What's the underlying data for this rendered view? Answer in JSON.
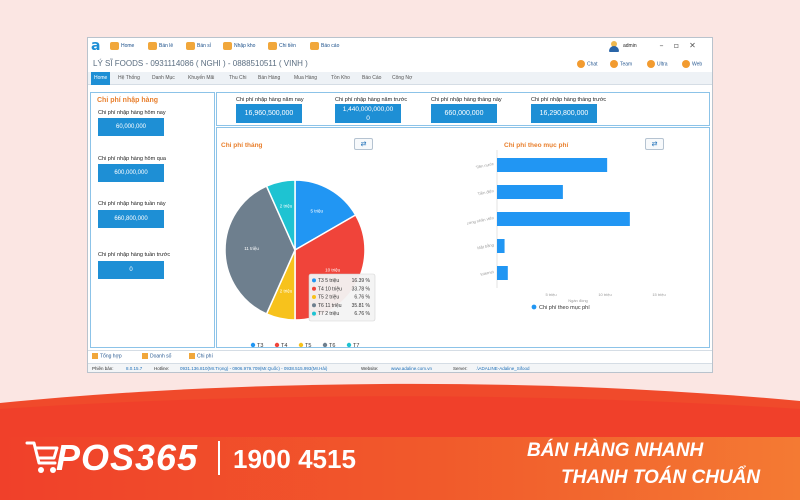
{
  "toolbar": {
    "items": [
      {
        "label": "Home"
      },
      {
        "label": "Bán lẻ"
      },
      {
        "label": "Bán sỉ"
      },
      {
        "label": "Nhập kho"
      },
      {
        "label": "Chi tiền"
      },
      {
        "label": "Báo cáo"
      }
    ],
    "user": "admin"
  },
  "store": {
    "title": "LÝ SĨ FOODS - 0931114086 ( NGHI ) - 0888510511 ( VINH )",
    "links": [
      "Chat",
      "Team",
      "Ultra",
      "Web"
    ]
  },
  "nav": [
    "Home",
    "Hệ Thống",
    "Danh Mục",
    "Khuyến Mãi",
    "Thu Chi",
    "Bán Hàng",
    "Mua Hàng",
    "Tồn Kho",
    "Báo Cáo",
    "Công Nợ"
  ],
  "left_panel": {
    "title": "Chi phí nhập hàng",
    "kpis": [
      {
        "label": "Chi phí nhập hàng hôm nay",
        "value": "60,000,000"
      },
      {
        "label": "Chi phí nhập hàng hôm qua",
        "value": "600,000,000"
      },
      {
        "label": "Chi phí nhập hàng tuần này",
        "value": "660,800,000"
      },
      {
        "label": "Chi phí nhập hàng tuần trước",
        "value": "0"
      }
    ]
  },
  "top_kpis": [
    {
      "label": "Chi phí nhập hàng năm nay",
      "line1": "16,960,500,000",
      "line2": ""
    },
    {
      "label": "Chi phí nhập hàng năm trước",
      "line1": "1,440,000,000,00",
      "line2": "0"
    },
    {
      "label": "Chi phí nhập hàng tháng này",
      "line1": "660,000,000",
      "line2": ""
    },
    {
      "label": "Chi phí nhập hàng tháng trước",
      "line1": "16,290,800,000",
      "line2": ""
    }
  ],
  "pie": {
    "title": "Chi phí tháng",
    "refresh_icon": "refresh-icon",
    "slice_labels": [
      "5 triệu",
      "10 triệu",
      "2 triệu",
      "11 triệu",
      "2 triệu"
    ],
    "legend": [
      "T3",
      "T4",
      "T5",
      "T6",
      "T7"
    ],
    "colors": [
      "#2196f3",
      "#f0443a",
      "#f7c21c",
      "#6e7f8e",
      "#1ec3d2"
    ],
    "tooltip": [
      {
        "name": "T3",
        "amount": "5 triệu",
        "pct": "16.39 %"
      },
      {
        "name": "T4",
        "amount": "10 triệu",
        "pct": "33.78 %"
      },
      {
        "name": "T5",
        "amount": "2 triệu",
        "pct": "6.76 %"
      },
      {
        "name": "T6",
        "amount": "11 triệu",
        "pct": "35.81 %"
      },
      {
        "name": "T7",
        "amount": "2 triệu",
        "pct": "6.76 %"
      }
    ]
  },
  "bars": {
    "title": "Chi phí theo mục phí",
    "refresh_icon": "refresh-icon",
    "categories": [
      "Tiền nước",
      "Tiền điện",
      "Lương nhân viên",
      "Mặt bằng",
      "Internet"
    ],
    "values": [
      10.2,
      6.1,
      12.3,
      0.7,
      1.0
    ],
    "ticks": [
      "5 triệu",
      "10 triệu",
      "15 triệu"
    ],
    "xlabel": "Ngàn đồng",
    "legend": "Chi phí theo mục phí",
    "color": "#2196f3",
    "xlim": [
      0,
      15
    ]
  },
  "chart_data": [
    {
      "type": "pie",
      "title": "Chi phí tháng",
      "categories": [
        "T3",
        "T4",
        "T5",
        "T6",
        "T7"
      ],
      "values": [
        5,
        10,
        2,
        11,
        2
      ],
      "percentages": [
        16.39,
        33.78,
        6.76,
        35.81,
        6.76
      ],
      "legend": "bottom"
    },
    {
      "type": "bar",
      "orientation": "horizontal",
      "title": "Chi phí theo mục phí",
      "categories": [
        "Tiền nước",
        "Tiền điện",
        "Lương nhân viên",
        "Mặt bằng",
        "Internet"
      ],
      "values": [
        10.2,
        6.1,
        12.3,
        0.7,
        1.0
      ],
      "xlabel": "Ngàn đồng",
      "xlim": [
        0,
        15
      ],
      "legend": "bottom"
    }
  ],
  "bottom_tabs": [
    "Tổng hợp",
    "Doanh số",
    "Chi phí"
  ],
  "status": {
    "version_label": "Phiên bản:",
    "version": "8.0.15.7",
    "hotline_label": "Hotline:",
    "hotline": "0931.136.810(Mr.Trọng) - 0906.979.709(Mr.Quốc) - 0938.515.993(Mr.Hải)",
    "website_label": "Website:",
    "website": "www.adaline.com.vn",
    "server_label": "Server:",
    "server": ".\\ADALINE-Adaline_Sifood"
  },
  "banner": {
    "brand": "POS365",
    "hotline": "1900 4515",
    "slogan1": "BÁN HÀNG NHANH",
    "slogan2": "THANH TOÁN CHUẨN"
  }
}
